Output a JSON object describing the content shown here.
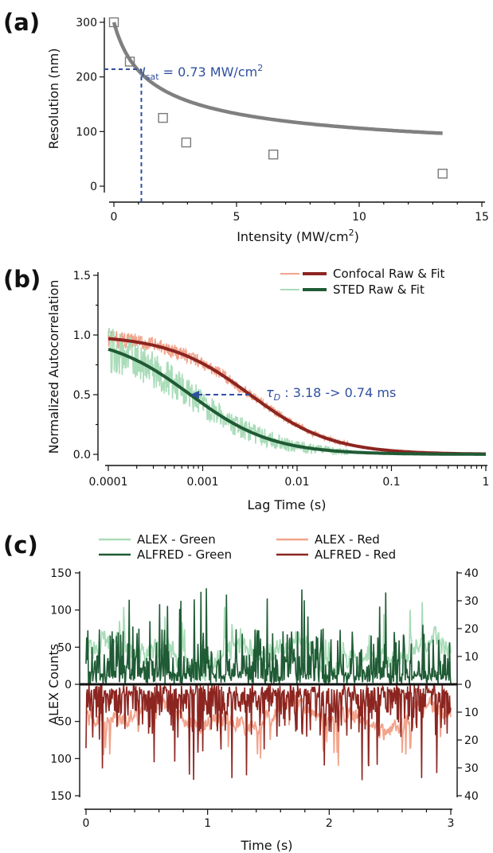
{
  "chart_data": [
    {
      "panel": "(a)",
      "type": "scatter",
      "xlabel": "Intensity (MW/cm",
      "xlabel_sup": "2",
      "xlabel_end": ")",
      "ylabel": "Resolution (nm)",
      "xlim": [
        0,
        15
      ],
      "ylim": [
        0,
        300
      ],
      "xticks": [
        0,
        5,
        10,
        15
      ],
      "yticks": [
        0,
        100,
        200,
        300
      ],
      "points": [
        {
          "x": 0.0,
          "y": 300
        },
        {
          "x": 0.65,
          "y": 228
        },
        {
          "x": 2.0,
          "y": 125
        },
        {
          "x": 2.95,
          "y": 80
        },
        {
          "x": 6.5,
          "y": 58
        },
        {
          "x": 13.4,
          "y": 23
        }
      ],
      "fit": {
        "d0": 300,
        "isat": 0.73,
        "floor": 33
      },
      "annotation": {
        "label": "I",
        "sub": "sat",
        "value": " = 0.73 MW/cm",
        "sup": "2",
        "x": 0.73,
        "y": 214
      },
      "colors": {
        "points": "#7a7a7a",
        "fit": "#808080",
        "annotation": "#2f4f9f"
      }
    },
    {
      "panel": "(b)",
      "type": "line",
      "xlabel": "Lag Time (s)",
      "ylabel": "Normalized Autocorrelation",
      "xscale": "log",
      "xlim": [
        0.0001,
        1
      ],
      "ylim": [
        -0.04,
        1.5
      ],
      "xticks": [
        0.0001,
        0.001,
        0.01,
        0.1,
        1
      ],
      "xtick_labels": [
        "0.0001",
        "0.001",
        "0.01",
        "0.1",
        "1"
      ],
      "yticks": [
        0.0,
        0.5,
        1.0,
        1.5
      ],
      "ytick_labels": [
        "0.0",
        "0.5",
        "1.0",
        "1.5"
      ],
      "series": [
        {
          "name": "Confocal Raw & Fit",
          "tau_d": 0.00318,
          "raw_color": "#f2a48c",
          "fit_color": "#8c2520"
        },
        {
          "name": "STED Raw & Fit",
          "tau_d": 0.00074,
          "raw_color": "#a9dcb8",
          "fit_color": "#1f5b35"
        }
      ],
      "annotation": {
        "label": "τ",
        "sub": "D",
        "value": " : 3.18 -> 0.74 ms",
        "from": 0.00318,
        "to": 0.00074,
        "y": 0.5
      },
      "legend": "top-right"
    },
    {
      "panel": "(c)",
      "type": "line",
      "xlabel": "Time (s)",
      "ylabel": "ALEX Counts",
      "xlim": [
        0,
        3
      ],
      "ylim_left": [
        -150,
        150
      ],
      "ylim_right": [
        -40,
        40
      ],
      "xticks": [
        0,
        1,
        2,
        3
      ],
      "yticks_left": [
        -150,
        -100,
        -50,
        0,
        50,
        100,
        150
      ],
      "ytick_labels_left": [
        "150",
        "100",
        "50",
        "0",
        "50",
        "100",
        "150"
      ],
      "yticks_right": [
        -40,
        -30,
        -20,
        -10,
        0,
        10,
        20,
        30,
        40
      ],
      "ytick_labels_right": [
        "40",
        "30",
        "20",
        "10",
        "0",
        "10",
        "20",
        "30",
        "40"
      ],
      "series": [
        {
          "name": "ALEX - Green",
          "color": "#a9dcb8",
          "axis": "left",
          "sign": 1
        },
        {
          "name": "ALFRED - Green",
          "color": "#1f5b35",
          "axis": "right",
          "sign": 1
        },
        {
          "name": "ALEX - Red",
          "color": "#f2a48c",
          "axis": "left",
          "sign": -1
        },
        {
          "name": "ALFRED - Red",
          "color": "#8c2520",
          "axis": "right",
          "sign": -1
        }
      ],
      "legend": "top"
    }
  ]
}
